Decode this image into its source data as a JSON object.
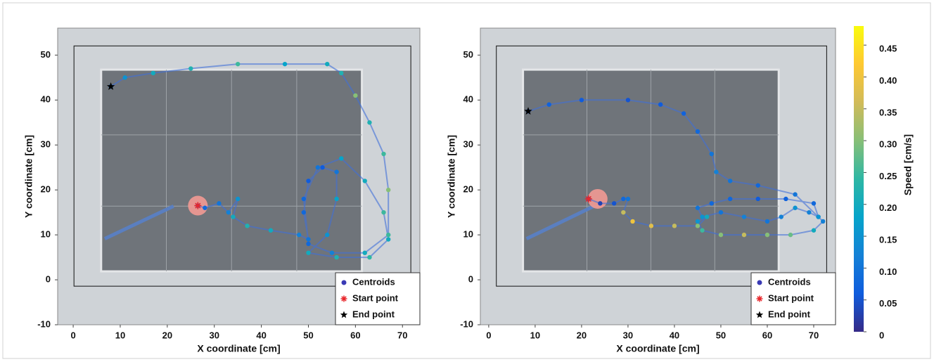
{
  "chart_data": [
    {
      "type": "line",
      "xlabel": "X coordinate [cm]",
      "ylabel": "Y coordinate [cm]",
      "xlim": [
        -3.3,
        73.7
      ],
      "ylim": [
        -10,
        56
      ],
      "xticks": [
        0,
        10,
        20,
        30,
        40,
        50,
        60,
        70
      ],
      "yticks": [
        -10,
        0,
        10,
        20,
        30,
        40,
        50
      ],
      "x": [
        26.5,
        28,
        31,
        33,
        35,
        34,
        37,
        42,
        48,
        50,
        49,
        50,
        53,
        56,
        56,
        54,
        50,
        56,
        63,
        67,
        66,
        62,
        57,
        52,
        49,
        50,
        55,
        62,
        67,
        67,
        66,
        63,
        60,
        57,
        54,
        45,
        35,
        25,
        17,
        11,
        8
      ],
      "y": [
        16.5,
        16,
        17,
        15,
        18,
        14,
        12,
        11,
        10,
        9,
        15,
        22,
        25,
        24,
        18,
        10,
        6,
        5,
        5,
        9,
        15,
        22,
        27,
        25,
        18,
        8,
        6,
        6,
        10,
        20,
        28,
        35,
        41,
        46,
        48,
        48,
        48,
        47,
        46,
        45,
        43
      ],
      "speed": [
        0.05,
        0.08,
        0.1,
        0.12,
        0.15,
        0.2,
        0.22,
        0.2,
        0.12,
        0.1,
        0.08,
        0.06,
        0.06,
        0.1,
        0.18,
        0.15,
        0.2,
        0.22,
        0.24,
        0.2,
        0.25,
        0.2,
        0.18,
        0.1,
        0.08,
        0.08,
        0.12,
        0.2,
        0.25,
        0.3,
        0.25,
        0.22,
        0.3,
        0.22,
        0.2,
        0.18,
        0.25,
        0.22,
        0.2,
        0.15,
        0.1
      ],
      "start": {
        "x": 26.5,
        "y": 16.5
      },
      "end": {
        "x": 8,
        "y": 43
      },
      "legend": [
        "Centroids",
        "Start point",
        "End point"
      ],
      "colors": {
        "centroids": "#3a3ab5",
        "start": "#e8282d",
        "end": "#000000"
      }
    },
    {
      "type": "line",
      "xlabel": "X coordinate [cm]",
      "ylabel": "Y coordinate [cm]",
      "xlim": [
        -1.8,
        74.7
      ],
      "ylim": [
        -10,
        56
      ],
      "xticks": [
        0,
        10,
        20,
        30,
        40,
        50,
        60,
        70
      ],
      "yticks": [
        -10,
        0,
        10,
        20,
        30,
        40,
        50
      ],
      "x": [
        21.5,
        24,
        27,
        29,
        30,
        29,
        31,
        35,
        40,
        45,
        47,
        45,
        46,
        50,
        55,
        60,
        65,
        70,
        72,
        71,
        69,
        66,
        63,
        60,
        55,
        50,
        46,
        45,
        48,
        52,
        58,
        64,
        70,
        71,
        66,
        58,
        52,
        49,
        48,
        45,
        42,
        37,
        30,
        20,
        13,
        8.5
      ],
      "y": [
        18,
        17,
        17,
        18,
        18,
        15,
        13,
        12,
        12,
        12,
        14,
        13,
        11,
        10,
        10,
        10,
        10,
        11,
        13,
        14,
        15,
        16,
        14,
        13,
        14,
        15,
        14,
        16,
        17,
        18,
        18,
        18,
        17,
        14,
        19,
        21,
        22,
        24,
        28,
        33,
        37,
        39,
        40,
        40,
        39,
        37.5
      ],
      "speed": [
        0.05,
        0.03,
        0.05,
        0.08,
        0.1,
        0.35,
        0.4,
        0.38,
        0.35,
        0.3,
        0.2,
        0.15,
        0.25,
        0.3,
        0.35,
        0.3,
        0.28,
        0.2,
        0.12,
        0.1,
        0.12,
        0.15,
        0.12,
        0.1,
        0.12,
        0.1,
        0.15,
        0.1,
        0.08,
        0.08,
        0.06,
        0.07,
        0.08,
        0.15,
        0.1,
        0.08,
        0.1,
        0.12,
        0.1,
        0.08,
        0.07,
        0.06,
        0.05,
        0.06,
        0.07,
        0.05
      ],
      "start": {
        "x": 21.5,
        "y": 18
      },
      "end": {
        "x": 8.5,
        "y": 37.5
      },
      "legend": [
        "Centroids",
        "Start point",
        "End point"
      ],
      "colors": {
        "centroids": "#3a3ab5",
        "start": "#e8282d",
        "end": "#000000"
      }
    },
    {
      "type": "colorbar",
      "label": "Speed [cm/s]",
      "clim": [
        0,
        0.48
      ],
      "ticks": [
        0,
        0.05,
        {
          "value": 0.1,
          "label": "0.10"
        },
        0.15,
        {
          "value": 0.2,
          "label": "0.20"
        },
        0.25,
        {
          "value": 0.3,
          "label": "0.30"
        },
        0.35,
        {
          "value": 0.4,
          "label": "0.40"
        },
        0.45
      ],
      "colormap": [
        "#352a87",
        "#0f5cdd",
        "#1481d6",
        "#06a4ca",
        "#2eb7a4",
        "#87bf77",
        "#d1bb59",
        "#fec832",
        "#f9fb0e"
      ]
    }
  ]
}
